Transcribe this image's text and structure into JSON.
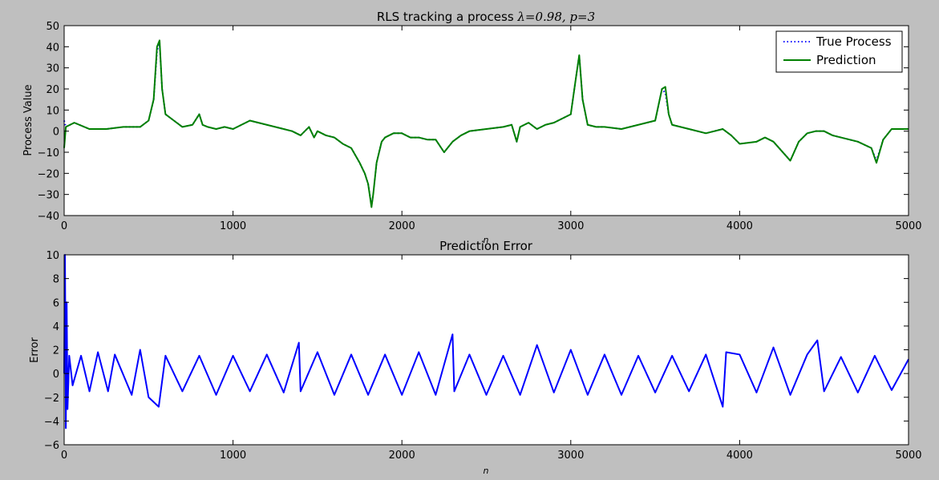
{
  "chart_data": [
    {
      "type": "line",
      "title_text": "RLS tracking a process ",
      "title_math": "λ=0.98, p=3",
      "xlabel": "n",
      "ylabel": "Process Value",
      "xlim": [
        0,
        5000
      ],
      "ylim": [
        -40,
        50
      ],
      "xticks": [
        0,
        1000,
        2000,
        3000,
        4000,
        5000
      ],
      "yticks": [
        -40,
        -30,
        -20,
        -10,
        0,
        10,
        20,
        30,
        40,
        50
      ],
      "legend_position": "top-right",
      "grid": false,
      "series": [
        {
          "name": "True Process",
          "color": "#0000ff",
          "style": "dotted",
          "x": [
            0,
            10,
            60,
            150,
            250,
            350,
            450,
            500,
            530,
            550,
            565,
            580,
            600,
            650,
            700,
            760,
            800,
            820,
            850,
            900,
            950,
            1000,
            1100,
            1150,
            1200,
            1300,
            1350,
            1400,
            1450,
            1480,
            1500,
            1550,
            1600,
            1650,
            1700,
            1750,
            1780,
            1800,
            1820,
            1830,
            1850,
            1880,
            1900,
            1950,
            2000,
            2050,
            2100,
            2150,
            2200,
            2250,
            2300,
            2350,
            2400,
            2500,
            2600,
            2650,
            2680,
            2700,
            2750,
            2800,
            2850,
            2900,
            2950,
            3000,
            3030,
            3050,
            3070,
            3100,
            3150,
            3200,
            3300,
            3400,
            3500,
            3540,
            3560,
            3580,
            3600,
            3700,
            3800,
            3850,
            3900,
            3950,
            4000,
            4100,
            4150,
            4200,
            4300,
            4350,
            4400,
            4450,
            4500,
            4550,
            4600,
            4700,
            4780,
            4810,
            4850,
            4900,
            5000
          ],
          "y": [
            5,
            2,
            4,
            1,
            1,
            2,
            2,
            5,
            15,
            38,
            42,
            20,
            8,
            5,
            2,
            3,
            8,
            3,
            2,
            1,
            2,
            1,
            5,
            4,
            3,
            1,
            0,
            -2,
            2,
            -3,
            0,
            -2,
            -3,
            -6,
            -8,
            -15,
            -20,
            -25,
            -35,
            -30,
            -15,
            -5,
            -3,
            -1,
            -1,
            -3,
            -3,
            -4,
            -4,
            -10,
            -5,
            -2,
            0,
            1,
            2,
            3,
            -5,
            2,
            4,
            1,
            3,
            4,
            6,
            8,
            25,
            36,
            15,
            3,
            2,
            2,
            1,
            3,
            5,
            20,
            18,
            8,
            3,
            1,
            -1,
            0,
            1,
            -2,
            -6,
            -5,
            -3,
            -5,
            -14,
            -5,
            -1,
            0,
            0,
            -2,
            -3,
            -5,
            -8,
            -14,
            -4,
            1,
            1
          ]
        },
        {
          "name": "Prediction",
          "color": "#008000",
          "style": "solid",
          "x": [
            0,
            10,
            60,
            150,
            250,
            350,
            450,
            500,
            530,
            550,
            565,
            580,
            600,
            650,
            700,
            760,
            800,
            820,
            850,
            900,
            950,
            1000,
            1100,
            1150,
            1200,
            1300,
            1350,
            1400,
            1450,
            1480,
            1500,
            1550,
            1600,
            1650,
            1700,
            1750,
            1780,
            1800,
            1820,
            1830,
            1850,
            1880,
            1900,
            1950,
            2000,
            2050,
            2100,
            2150,
            2200,
            2250,
            2300,
            2350,
            2400,
            2500,
            2600,
            2650,
            2680,
            2700,
            2750,
            2800,
            2850,
            2900,
            2950,
            3000,
            3030,
            3050,
            3070,
            3100,
            3150,
            3200,
            3300,
            3400,
            3500,
            3540,
            3560,
            3580,
            3600,
            3700,
            3800,
            3850,
            3900,
            3950,
            4000,
            4100,
            4150,
            4200,
            4300,
            4350,
            4400,
            4450,
            4500,
            4550,
            4600,
            4700,
            4780,
            4810,
            4850,
            4900,
            5000
          ],
          "y": [
            -8,
            2,
            4,
            1,
            1,
            2,
            2,
            5,
            15,
            40,
            43,
            20,
            8,
            5,
            2,
            3,
            8,
            3,
            2,
            1,
            2,
            1,
            5,
            4,
            3,
            1,
            0,
            -2,
            2,
            -3,
            0,
            -2,
            -3,
            -6,
            -8,
            -15,
            -20,
            -25,
            -36,
            -30,
            -15,
            -5,
            -3,
            -1,
            -1,
            -3,
            -3,
            -4,
            -4,
            -10,
            -5,
            -2,
            0,
            1,
            2,
            3,
            -5,
            2,
            4,
            1,
            3,
            4,
            6,
            8,
            25,
            36,
            15,
            3,
            2,
            2,
            1,
            3,
            5,
            20,
            21,
            8,
            3,
            1,
            -1,
            0,
            1,
            -2,
            -6,
            -5,
            -3,
            -5,
            -14,
            -5,
            -1,
            0,
            0,
            -2,
            -3,
            -5,
            -8,
            -15,
            -4,
            1,
            1
          ]
        }
      ]
    },
    {
      "type": "line",
      "title": "Prediction Error",
      "xlabel": "n",
      "ylabel": "Error",
      "xlim": [
        0,
        5000
      ],
      "ylim": [
        -6,
        10
      ],
      "xticks": [
        0,
        1000,
        2000,
        3000,
        4000,
        5000
      ],
      "yticks": [
        -6,
        -4,
        -2,
        0,
        2,
        4,
        6,
        8,
        10
      ],
      "grid": false,
      "series": [
        {
          "color": "#0000ff",
          "style": "solid",
          "x": [
            0,
            5,
            10,
            15,
            20,
            30,
            50,
            100,
            150,
            200,
            260,
            300,
            400,
            450,
            500,
            560,
            600,
            700,
            800,
            900,
            1000,
            1100,
            1200,
            1300,
            1390,
            1400,
            1500,
            1600,
            1700,
            1800,
            1900,
            2000,
            2100,
            2200,
            2300,
            2310,
            2400,
            2500,
            2600,
            2700,
            2800,
            2900,
            3000,
            3100,
            3200,
            3300,
            3400,
            3500,
            3600,
            3700,
            3800,
            3900,
            3920,
            4000,
            4100,
            4200,
            4300,
            4400,
            4460,
            4500,
            4600,
            4700,
            4800,
            4900,
            5000
          ],
          "y": [
            0,
            10,
            -4.6,
            6,
            -3,
            1.5,
            -1,
            1.5,
            -1.5,
            1.8,
            -1.5,
            1.6,
            -1.8,
            2.0,
            -2.0,
            -2.8,
            1.5,
            -1.5,
            1.5,
            -1.8,
            1.5,
            -1.5,
            1.6,
            -1.6,
            2.6,
            -1.5,
            1.8,
            -1.8,
            1.6,
            -1.8,
            1.6,
            -1.8,
            1.8,
            -1.8,
            3.3,
            -1.5,
            1.6,
            -1.8,
            1.5,
            -1.8,
            2.4,
            -1.6,
            2.0,
            -1.8,
            1.6,
            -1.8,
            1.5,
            -1.6,
            1.5,
            -1.5,
            1.6,
            -2.8,
            1.8,
            1.6,
            -1.6,
            2.2,
            -1.8,
            1.6,
            2.8,
            -1.5,
            1.4,
            -1.6,
            1.5,
            -1.4,
            1.2
          ]
        }
      ]
    }
  ]
}
